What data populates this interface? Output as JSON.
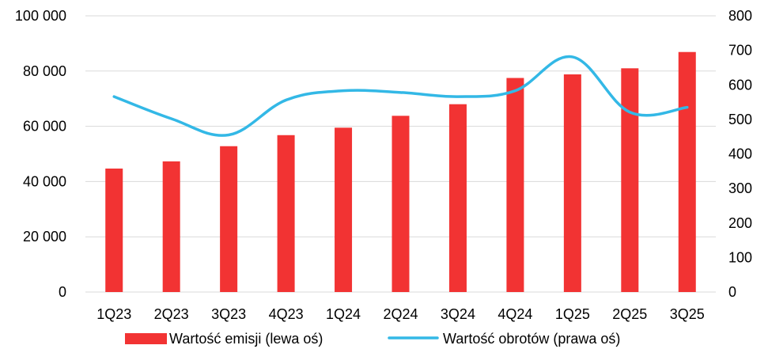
{
  "chart_data": {
    "type": "bar",
    "categories": [
      "1Q23",
      "2Q23",
      "3Q23",
      "4Q23",
      "1Q24",
      "2Q24",
      "3Q24",
      "4Q24",
      "1Q25",
      "2Q25",
      "3Q25"
    ],
    "series": [
      {
        "name": "Wartość emisji (lewa oś)",
        "type": "bar",
        "axis": "left",
        "color": "#f23333",
        "values": [
          44700,
          47300,
          52800,
          56800,
          59500,
          63800,
          68000,
          77500,
          78800,
          81000,
          86900
        ]
      },
      {
        "name": "Wartość obrotów (prawa oś)",
        "type": "line",
        "axis": "right",
        "color": "#33b8e6",
        "values": [
          566,
          502,
          455,
          556,
          583,
          578,
          566,
          583,
          681,
          521,
          535
        ]
      }
    ],
    "y_left": {
      "ylim": [
        0,
        100000
      ],
      "ticks": [
        0,
        20000,
        40000,
        60000,
        80000,
        100000
      ],
      "tick_labels": [
        "0",
        "20 000",
        "40 000",
        "60 000",
        "80 000",
        "100 000"
      ]
    },
    "y_right": {
      "ylim": [
        0,
        800
      ],
      "ticks": [
        0,
        100,
        200,
        300,
        400,
        500,
        600,
        700,
        800
      ],
      "tick_labels": [
        "0",
        "100",
        "200",
        "300",
        "400",
        "500",
        "600",
        "700",
        "800"
      ]
    },
    "title": "",
    "xlabel": "",
    "ylabel": "",
    "grid": true,
    "legend_position": "bottom"
  }
}
